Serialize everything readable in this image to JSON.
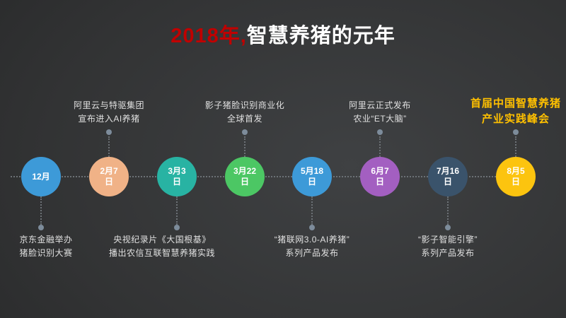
{
  "slide": {
    "title": {
      "highlight": "2018年,",
      "highlight_color": "#c00000",
      "main": "智慧养猪的元年",
      "main_color": "#ffffff"
    }
  },
  "timeline": {
    "connector_color": "#6c7176",
    "endpoint_dot_color": "#7d8c9b",
    "items": [
      {
        "date": "12月",
        "color": "#3d9ad8",
        "label_position": "below",
        "label": "京东金融举办\n猪脸识别大赛",
        "label_color": "#e0e0e0"
      },
      {
        "date": "2月7\n日",
        "color": "#f0b287",
        "label_position": "above",
        "label": "阿里云与特驱集团\n宣布进入AI养猪",
        "label_color": "#e0e0e0"
      },
      {
        "date": "3月3\n日",
        "color": "#28b3a3",
        "label_position": "below",
        "label": "央视纪录片《大国根基》\n播出农信互联智慧养猪实践",
        "label_color": "#e0e0e0"
      },
      {
        "date": "3月22\n日",
        "color": "#4cc764",
        "label_position": "above",
        "label": "影子猪脸识别商业化\n全球首发",
        "label_color": "#e0e0e0"
      },
      {
        "date": "5月18\n日",
        "color": "#3d9ad8",
        "label_position": "below",
        "label": "“猪联网3.0-AI养猪”\n系列产品发布",
        "label_color": "#e0e0e0"
      },
      {
        "date": "6月7\n日",
        "color": "#a35fc1",
        "label_position": "above",
        "label": "阿里云正式发布\n农业“ET大脑”",
        "label_color": "#e0e0e0"
      },
      {
        "date": "7月16\n日",
        "color": "#3a536b",
        "label_position": "below",
        "label": "“影子智能引擎”\n系列产品发布",
        "label_color": "#e0e0e0"
      },
      {
        "date": "8月5\n日",
        "color": "#fcc40f",
        "label_position": "above",
        "label": "首届中国智慧养猪\n产业实践峰会",
        "label_color": "#ffc000"
      }
    ]
  }
}
